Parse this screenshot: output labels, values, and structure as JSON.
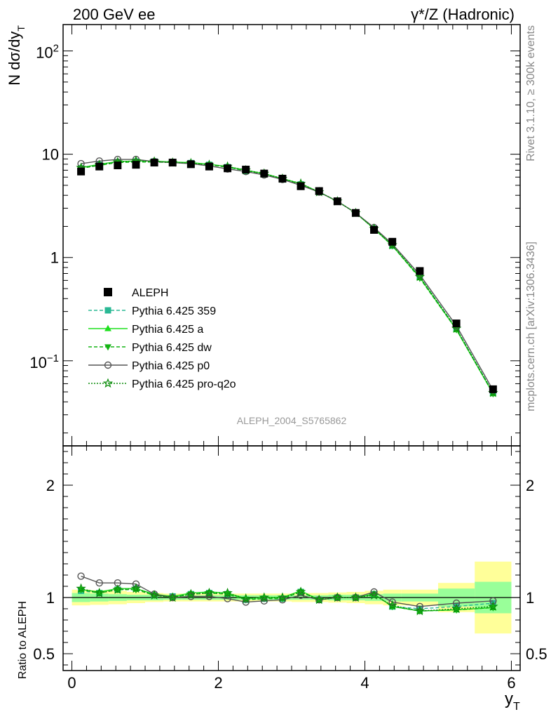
{
  "header": {
    "left": "200 GeV ee",
    "right": "γ*/Z (Hadronic)"
  },
  "side_labels": {
    "rivet": "Rivet 3.1.10, ≥ 300k events",
    "mcplots": "mcplots.cern.ch [arXiv:1306.3436]"
  },
  "watermark": "ALEPH_2004_S5765862",
  "chart_data": [
    {
      "type": "line",
      "ylabel": "N dσ/dy_T",
      "yscale": "log",
      "ylim": [
        0.015,
        180
      ],
      "xlim": [
        -0.12,
        6.12
      ],
      "yticks": [
        {
          "v": 0.1,
          "base": "10",
          "exp": "−1"
        },
        {
          "v": 1,
          "label": "1"
        },
        {
          "v": 10,
          "label": "10"
        },
        {
          "v": 100,
          "base": "10",
          "exp": "2"
        }
      ],
      "x": [
        0.125,
        0.375,
        0.625,
        0.875,
        1.125,
        1.375,
        1.625,
        1.875,
        2.125,
        2.375,
        2.625,
        2.875,
        3.125,
        3.375,
        3.625,
        3.875,
        4.125,
        4.375,
        4.75,
        5.25,
        5.75
      ],
      "data": {
        "name": "ALEPH",
        "values": [
          6.8,
          7.6,
          7.8,
          7.9,
          8.3,
          8.3,
          8.0,
          7.6,
          7.3,
          7.1,
          6.5,
          5.8,
          4.9,
          4.4,
          3.5,
          2.7,
          1.85,
          1.42,
          0.74,
          0.23,
          0.053
        ]
      },
      "series": [
        {
          "name": "Pythia 6.425 359",
          "color": "#2ab894",
          "dash": "5,3",
          "marker": "square",
          "values": [
            7.3,
            7.9,
            8.4,
            8.5,
            8.5,
            8.4,
            8.2,
            7.9,
            7.5,
            6.9,
            6.4,
            5.7,
            5.1,
            4.3,
            3.5,
            2.7,
            1.9,
            1.3,
            0.65,
            0.205,
            0.049
          ]
        },
        {
          "name": "Pythia 6.425 a",
          "color": "#1ee01e",
          "dash": "",
          "marker": "triangle-up",
          "values": [
            7.4,
            8.0,
            8.5,
            8.6,
            8.6,
            8.4,
            8.3,
            8.0,
            7.6,
            7.0,
            6.5,
            5.8,
            5.2,
            4.3,
            3.5,
            2.7,
            1.9,
            1.3,
            0.64,
            0.2,
            0.048
          ]
        },
        {
          "name": "Pythia 6.425 dw",
          "color": "#14b414",
          "dash": "5,3",
          "marker": "triangle-down",
          "values": [
            7.3,
            7.8,
            8.3,
            8.4,
            8.4,
            8.3,
            8.2,
            7.9,
            7.5,
            6.9,
            6.4,
            5.7,
            5.1,
            4.3,
            3.5,
            2.7,
            1.9,
            1.3,
            0.63,
            0.2,
            0.048
          ]
        },
        {
          "name": "Pythia 6.425 p0",
          "color": "#555555",
          "dash": "",
          "marker": "circle",
          "values": [
            8.1,
            8.6,
            8.9,
            8.9,
            8.5,
            8.3,
            8.1,
            7.7,
            7.2,
            6.8,
            6.3,
            5.7,
            5.0,
            4.3,
            3.5,
            2.7,
            1.95,
            1.35,
            0.68,
            0.218,
            0.052
          ]
        },
        {
          "name": "Pythia 6.425 pro-q2o",
          "color": "#0a8c0a",
          "dash": "2,2",
          "marker": "star",
          "values": [
            7.4,
            7.9,
            8.4,
            8.6,
            8.5,
            8.3,
            8.2,
            7.9,
            7.6,
            7.0,
            6.5,
            5.8,
            5.2,
            4.3,
            3.5,
            2.7,
            1.9,
            1.32,
            0.65,
            0.205,
            0.049
          ]
        }
      ]
    },
    {
      "type": "line",
      "ylabel": "Ratio to ALEPH",
      "xlabel": "y_T",
      "ylim": [
        0.35,
        2.35
      ],
      "xlim": [
        -0.12,
        6.12
      ],
      "yticks": [
        {
          "v": 0.5,
          "label": "0.5"
        },
        {
          "v": 1,
          "label": "1"
        },
        {
          "v": 2,
          "label": "2"
        }
      ],
      "xticks": [
        {
          "v": 0,
          "label": "0"
        },
        {
          "v": 2,
          "label": "2"
        },
        {
          "v": 4,
          "label": "4"
        },
        {
          "v": 6,
          "label": "6"
        }
      ],
      "bands": {
        "edges": [
          0,
          0.25,
          0.5,
          0.75,
          1.0,
          1.25,
          1.5,
          1.75,
          2.0,
          2.25,
          2.5,
          2.75,
          3.0,
          3.25,
          3.5,
          3.75,
          4.0,
          4.25,
          4.5,
          5.0,
          5.5,
          6.0
        ],
        "yellow": [
          [
            0.93,
            1.07
          ],
          [
            0.935,
            1.065
          ],
          [
            0.94,
            1.06
          ],
          [
            0.95,
            1.05
          ],
          [
            0.96,
            1.04
          ],
          [
            0.965,
            1.035
          ],
          [
            0.965,
            1.035
          ],
          [
            0.965,
            1.035
          ],
          [
            0.965,
            1.035
          ],
          [
            0.965,
            1.035
          ],
          [
            0.965,
            1.035
          ],
          [
            0.965,
            1.035
          ],
          [
            0.96,
            1.04
          ],
          [
            0.96,
            1.04
          ],
          [
            0.955,
            1.045
          ],
          [
            0.95,
            1.05
          ],
          [
            0.94,
            1.06
          ],
          [
            0.93,
            1.07
          ],
          [
            0.93,
            1.07
          ],
          [
            0.87,
            1.13
          ],
          [
            0.68,
            1.32
          ]
        ],
        "green": [
          [
            0.96,
            1.04
          ],
          [
            0.965,
            1.035
          ],
          [
            0.97,
            1.03
          ],
          [
            0.975,
            1.025
          ],
          [
            0.975,
            1.025
          ],
          [
            0.98,
            1.02
          ],
          [
            0.98,
            1.02
          ],
          [
            0.98,
            1.02
          ],
          [
            0.98,
            1.02
          ],
          [
            0.98,
            1.02
          ],
          [
            0.98,
            1.02
          ],
          [
            0.98,
            1.02
          ],
          [
            0.98,
            1.02
          ],
          [
            0.98,
            1.02
          ],
          [
            0.975,
            1.025
          ],
          [
            0.975,
            1.025
          ],
          [
            0.97,
            1.03
          ],
          [
            0.965,
            1.035
          ],
          [
            0.965,
            1.035
          ],
          [
            0.92,
            1.08
          ],
          [
            0.86,
            1.14
          ]
        ]
      },
      "series": [
        {
          "name": "Pythia 6.425 359",
          "values": [
            1.06,
            1.04,
            1.07,
            1.08,
            1.02,
            1.01,
            1.03,
            1.04,
            1.03,
            0.98,
            0.99,
            0.99,
            1.05,
            0.98,
            1.0,
            1.0,
            1.03,
            0.92,
            0.9,
            0.92,
            0.95
          ]
        },
        {
          "name": "Pythia 6.425 a",
          "values": [
            1.07,
            1.05,
            1.08,
            1.08,
            1.03,
            1.01,
            1.04,
            1.05,
            1.04,
            0.99,
            1.0,
            1.0,
            1.06,
            0.98,
            1.0,
            1.0,
            1.03,
            0.92,
            0.88,
            0.89,
            0.91
          ]
        },
        {
          "name": "Pythia 6.425 dw",
          "values": [
            1.07,
            1.04,
            1.07,
            1.07,
            1.02,
            1.0,
            1.03,
            1.04,
            1.03,
            0.98,
            0.99,
            0.99,
            1.05,
            0.98,
            1.0,
            1.0,
            1.03,
            0.92,
            0.88,
            0.89,
            0.91
          ]
        },
        {
          "name": "Pythia 6.425 p0",
          "values": [
            1.19,
            1.13,
            1.13,
            1.12,
            1.03,
            1.0,
            1.01,
            1.01,
            0.99,
            0.96,
            0.97,
            0.98,
            1.02,
            0.98,
            1.0,
            1.0,
            1.05,
            0.96,
            0.92,
            0.95,
            0.97
          ]
        },
        {
          "name": "Pythia 6.425 pro-q2o",
          "values": [
            1.08,
            1.04,
            1.07,
            1.08,
            1.02,
            1.0,
            1.03,
            1.04,
            1.04,
            0.99,
            1.0,
            1.0,
            1.05,
            0.98,
            1.0,
            1.0,
            1.02,
            0.93,
            0.88,
            0.9,
            0.92
          ]
        }
      ]
    }
  ]
}
